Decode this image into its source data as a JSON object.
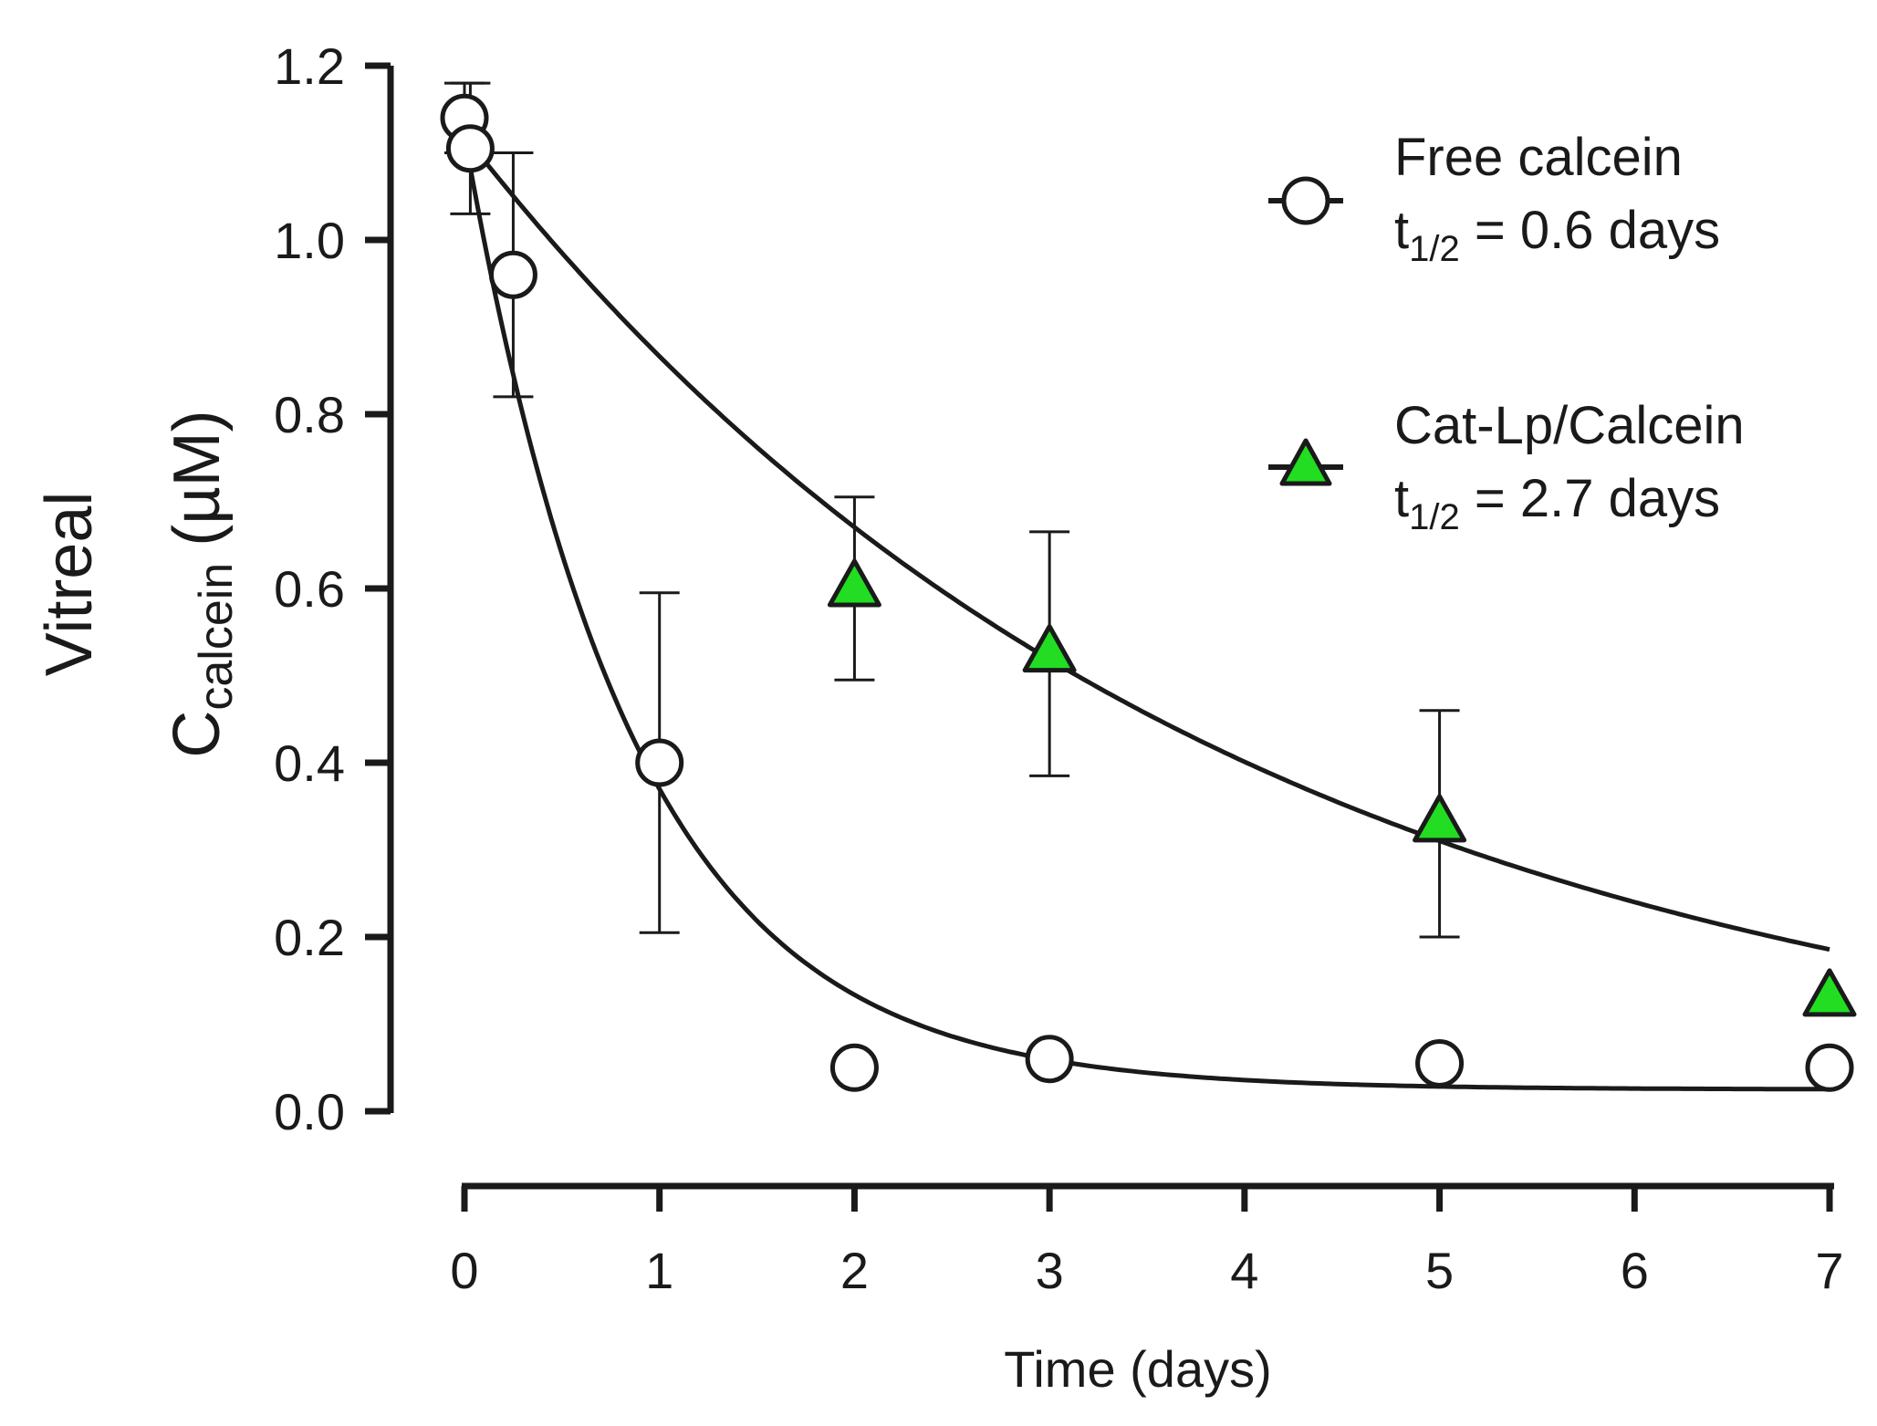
{
  "chart_data": {
    "type": "scatter",
    "xlabel": "Time (days)",
    "ylabel_line1": "Vitreal",
    "ylabel_main": "C",
    "ylabel_sub": "calcein",
    "ylabel_unit": "(µM)",
    "xlim": [
      0,
      7
    ],
    "ylim": [
      0,
      1.2
    ],
    "x_ticks": [
      0,
      1,
      2,
      3,
      4,
      5,
      6,
      7
    ],
    "x_tick_labels": [
      "0",
      "1",
      "2",
      "3",
      "4",
      "5",
      "6",
      "7"
    ],
    "y_ticks": [
      0,
      0.2,
      0.4,
      0.6,
      0.8,
      1.0,
      1.2
    ],
    "y_tick_labels": [
      "0.0",
      "0.2",
      "0.4",
      "0.6",
      "0.8",
      "1.0",
      "1.2"
    ],
    "grid": false,
    "legend_position": "top-right",
    "series": [
      {
        "name": "Free calcein",
        "marker": "circle",
        "fill": "#ffffff",
        "legend_line1": "Free calcein",
        "legend_t_prefix": "t",
        "legend_t_sub": "1/2",
        "legend_t_value": " = 0.6 days",
        "x": [
          0,
          0.03,
          0.25,
          1,
          2,
          3,
          5,
          7
        ],
        "y": [
          1.14,
          1.105,
          0.96,
          0.4,
          0.05,
          0.06,
          0.055,
          0.05
        ],
        "err": [
          0.04,
          0.075,
          0.14,
          0.195,
          0,
          0,
          0,
          0
        ],
        "fit": {
          "c0": 1.12,
          "half_life": 0.6,
          "plateau": 0.025
        }
      },
      {
        "name": "Cat-Lp/Calcein",
        "marker": "triangle",
        "fill": "#22dd22",
        "legend_line1": "Cat-Lp/Calcein",
        "legend_t_prefix": "t",
        "legend_t_sub": "1/2",
        "legend_t_value": " = 2.7 days",
        "x": [
          2,
          3,
          5,
          7
        ],
        "y": [
          0.6,
          0.525,
          0.33,
          0.13
        ],
        "err": [
          0.105,
          0.14,
          0.13,
          0
        ],
        "fit": {
          "c0": 1.12,
          "half_life": 2.7,
          "plateau": 0.0
        }
      }
    ]
  }
}
